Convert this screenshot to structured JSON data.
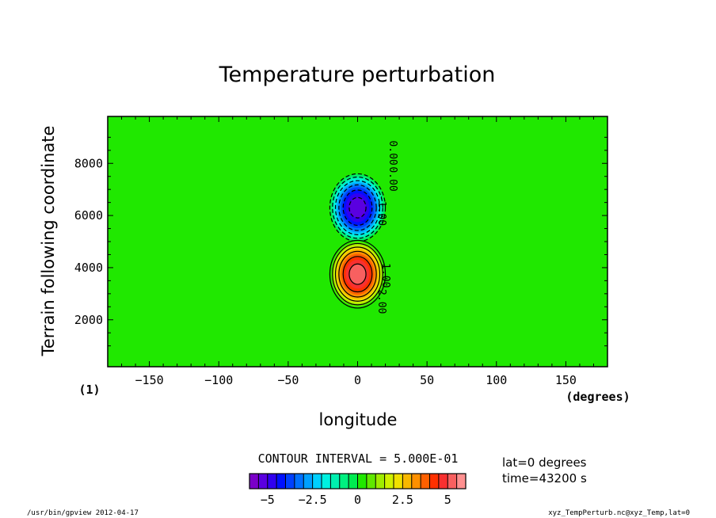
{
  "chart_data": {
    "type": "heatmap",
    "title": "Temperature perturbation",
    "xlabel": "longitude",
    "ylabel": "Terrain following coordinate",
    "x_unit": "(degrees)",
    "panel_label": "(1)",
    "xlim": [
      -180,
      180
    ],
    "ylim": [
      200,
      9800
    ],
    "x_ticks": [
      -150,
      -100,
      -50,
      0,
      50,
      100,
      150
    ],
    "y_ticks": [
      2000,
      4000,
      6000,
      8000
    ],
    "cold_anomaly": {
      "lon": 0,
      "z": 6300,
      "min": -5.5,
      "lon_halfwidth": 20,
      "z_halfwidth": 1300
    },
    "warm_anomaly": {
      "lon": 0,
      "z": 3750,
      "max": 5.5,
      "lon_halfwidth": 20,
      "z_halfwidth": 1300
    },
    "contour_labels": [
      "0.00",
      "-1.00",
      "1.00",
      "2.00",
      "0.00"
    ],
    "contour_interval_text": "CONTOUR INTERVAL = 5.000E-01",
    "colorbar": {
      "min": -6,
      "max": 6,
      "levels": 24,
      "tick_values": [
        -5,
        -2.5,
        0,
        2.5,
        5
      ],
      "tick_labels": [
        "−5",
        "−2.5",
        "0",
        "2.5",
        "5"
      ],
      "colors": [
        "#7a00c8",
        "#5a00e0",
        "#3000f0",
        "#0010ff",
        "#0040ff",
        "#0070ff",
        "#00a0ff",
        "#00d0ff",
        "#00f0e0",
        "#00f0b0",
        "#00f080",
        "#00ec50",
        "#20e800",
        "#60e800",
        "#a0ec00",
        "#d0f000",
        "#f0e000",
        "#f8b800",
        "#ff9000",
        "#ff6000",
        "#ff3000",
        "#f83030",
        "#f86060",
        "#ff9090"
      ]
    }
  },
  "info": {
    "lat_text": "lat=0 degrees",
    "time_text": "time=43200 s"
  },
  "footer": {
    "left": "/usr/bin/gpview  2012-04-17",
    "right": "xyz_TempPerturb.nc@xyz_Temp,lat=0"
  }
}
